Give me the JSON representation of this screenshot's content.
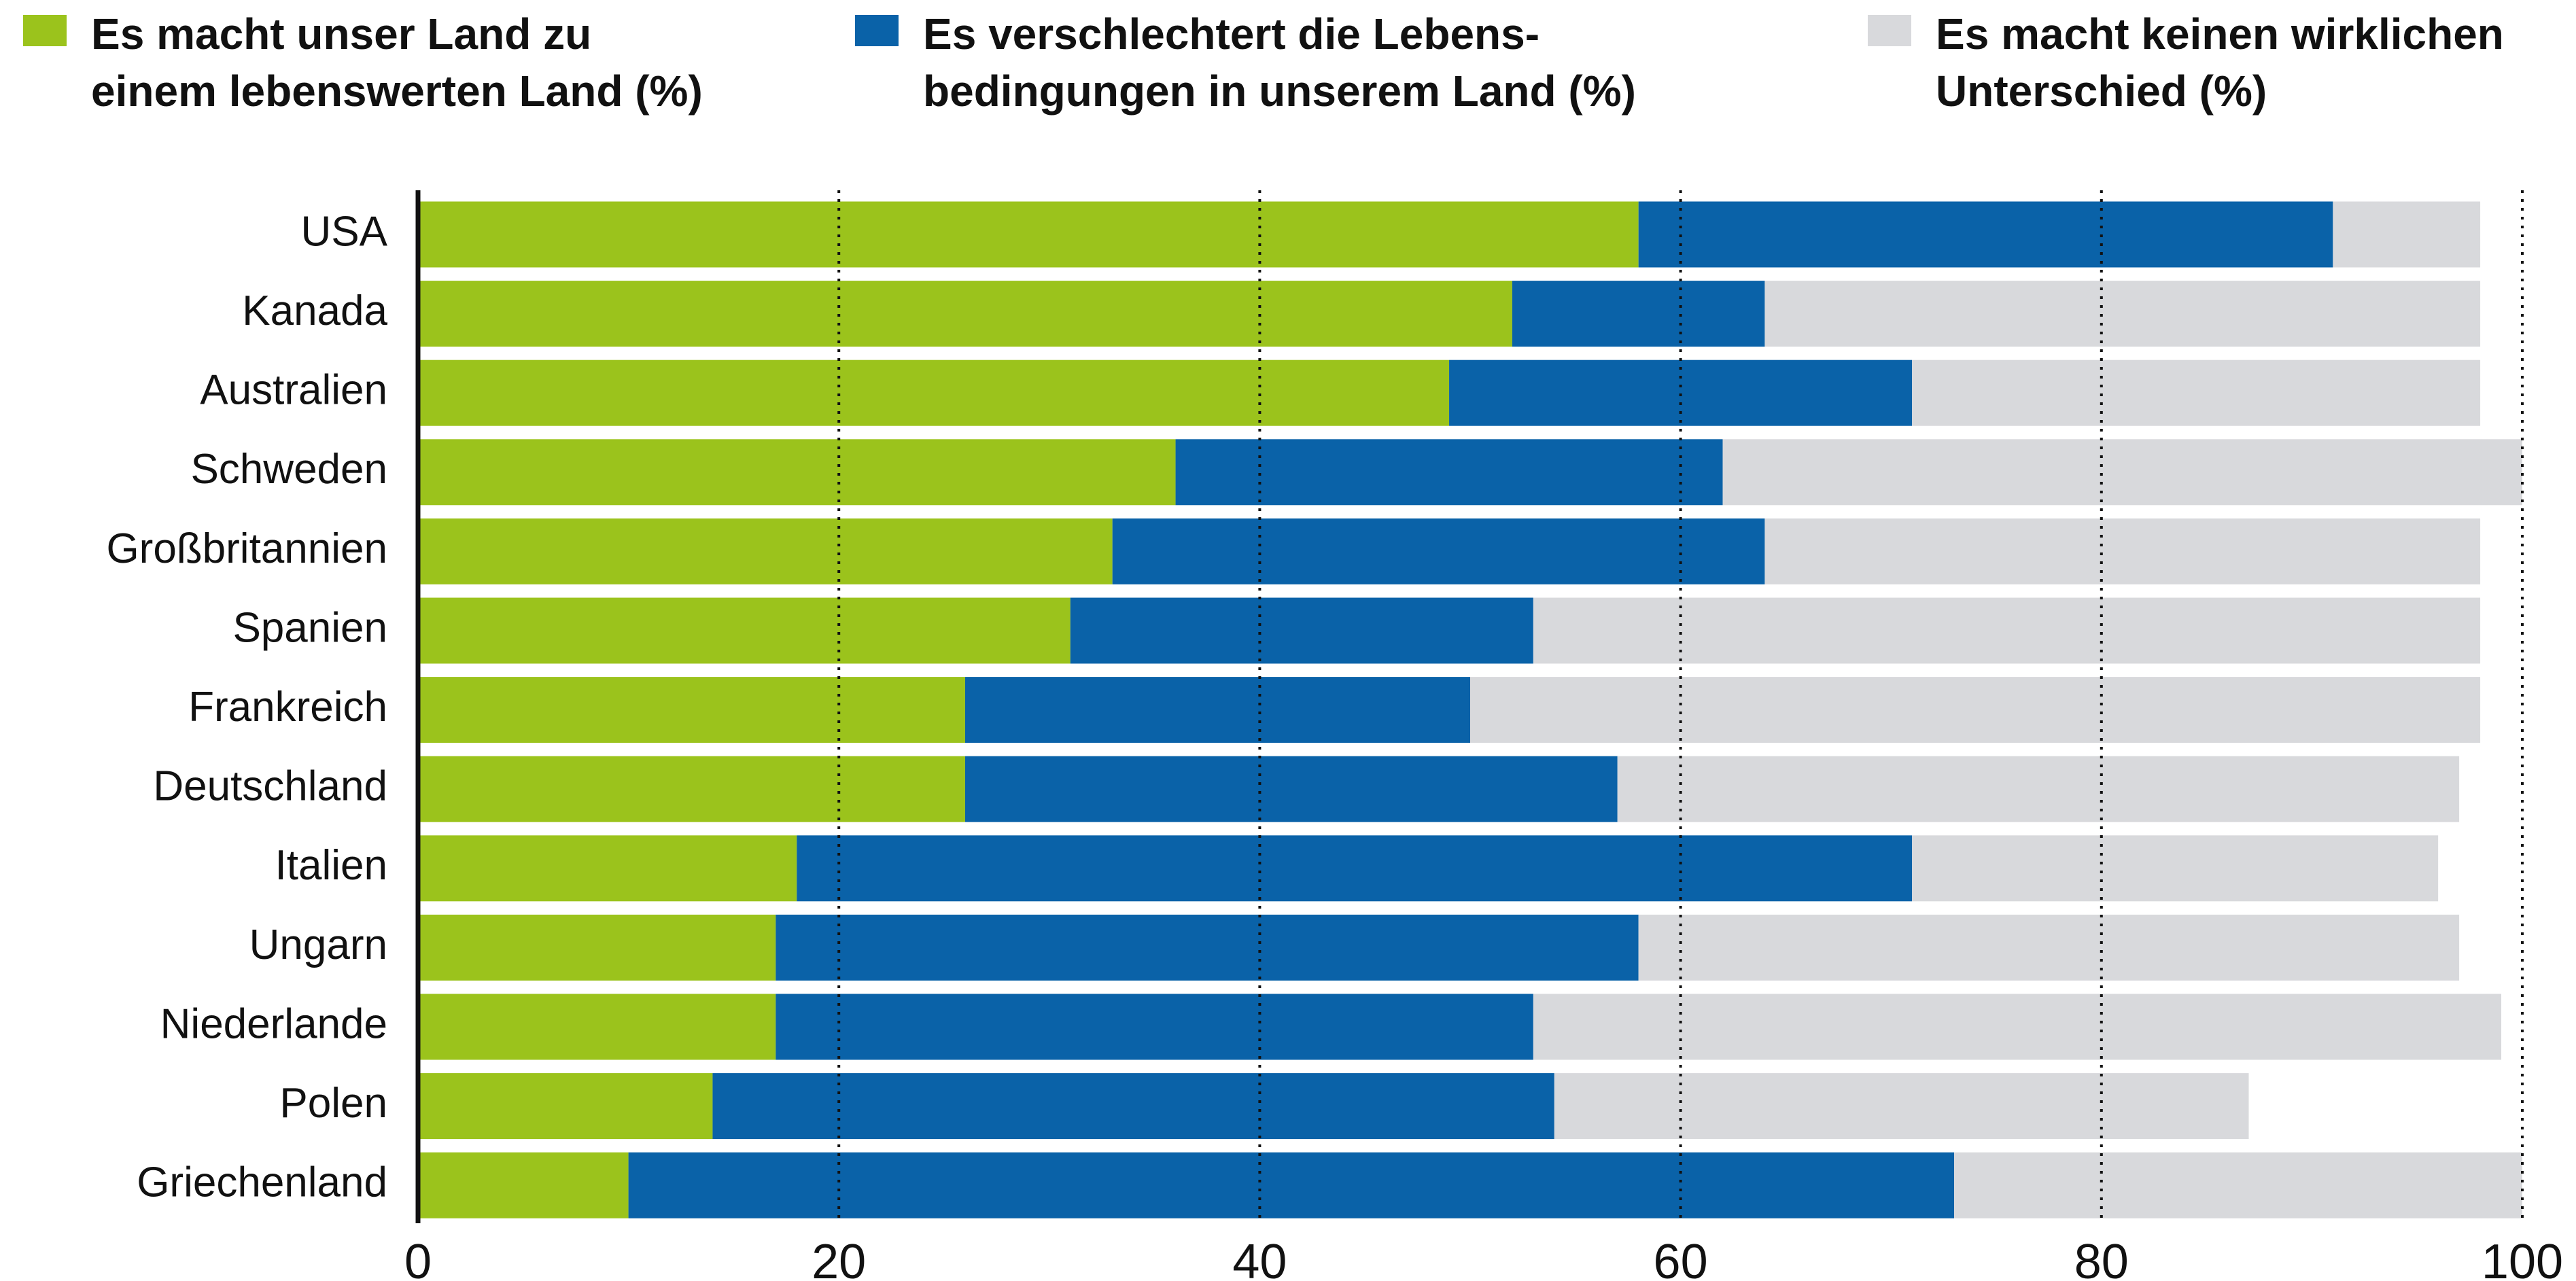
{
  "chart_data": {
    "type": "stacked_barh",
    "categories": [
      "USA",
      "Kanada",
      "Australien",
      "Schweden",
      "Großbritannien",
      "Spanien",
      "Frankreich",
      "Deutschland",
      "Italien",
      "Ungarn",
      "Niederlande",
      "Polen",
      "Griechenland"
    ],
    "series": [
      {
        "name": "Es macht unser Land zu\neinem lebenswerten Land (%)",
        "color": "#9bc31c",
        "values": [
          58,
          52,
          49,
          36,
          33,
          31,
          26,
          26,
          18,
          17,
          17,
          14,
          10
        ]
      },
      {
        "name": "Es verschlechtert die Lebens-\nbedingungen in unserem Land (%)",
        "color": "#0a62a8",
        "values": [
          33,
          12,
          22,
          26,
          31,
          22,
          24,
          31,
          53,
          41,
          36,
          40,
          63
        ]
      },
      {
        "name": "Es macht keinen wirklichen\nUnterschied (%)",
        "color": "#d8d9dc",
        "values": [
          7,
          34,
          27,
          38,
          34,
          45,
          48,
          40,
          25,
          39,
          46,
          33,
          27
        ]
      }
    ],
    "xlim": [
      0,
      100
    ],
    "xticks": [
      0,
      20,
      40,
      60,
      80,
      100
    ],
    "grid": true
  }
}
